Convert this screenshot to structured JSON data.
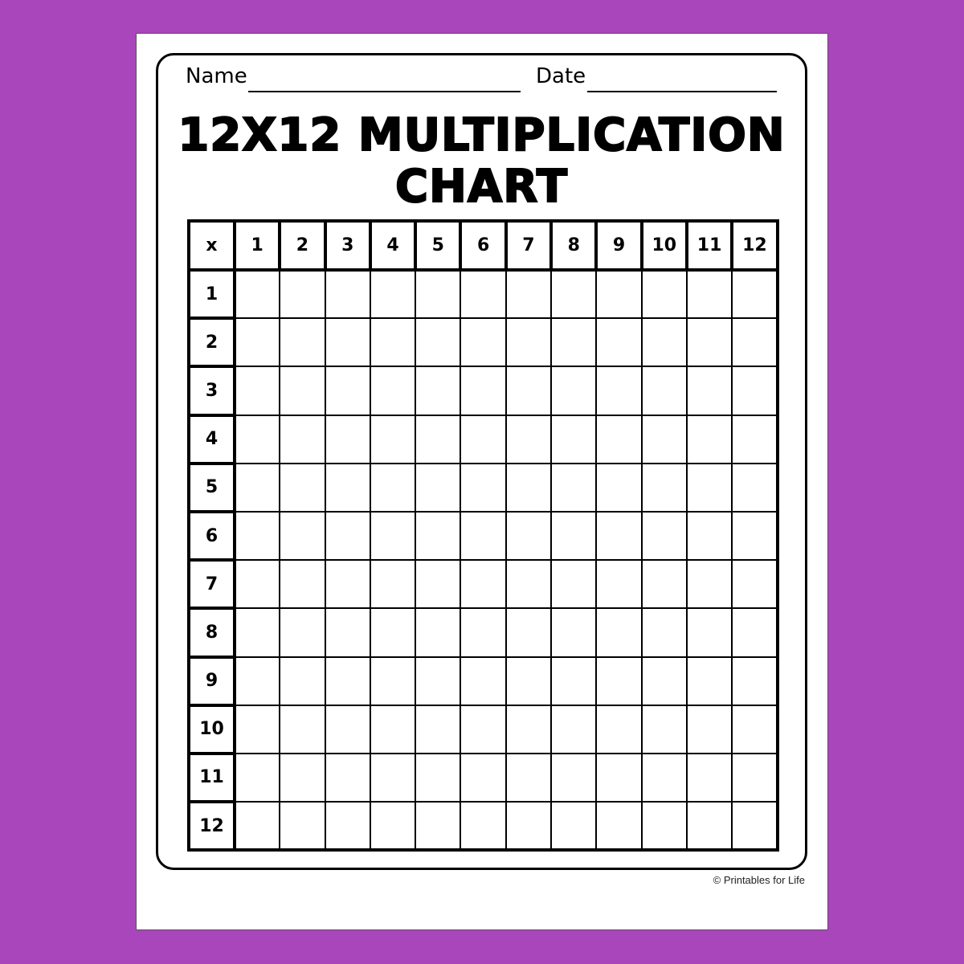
{
  "colors": {
    "background": "#A946BB",
    "page": "#ffffff",
    "ink": "#000000"
  },
  "header": {
    "name_label": "Name",
    "date_label": "Date"
  },
  "title": {
    "line1": "12X12 MULTIPLICATION",
    "line2": "CHART"
  },
  "chart": {
    "corner": "x",
    "columns": [
      "1",
      "2",
      "3",
      "4",
      "5",
      "6",
      "7",
      "8",
      "9",
      "10",
      "11",
      "12"
    ],
    "rows": [
      "1",
      "2",
      "3",
      "4",
      "5",
      "6",
      "7",
      "8",
      "9",
      "10",
      "11",
      "12"
    ]
  },
  "footer": {
    "copyright": "© Printables for Life"
  }
}
